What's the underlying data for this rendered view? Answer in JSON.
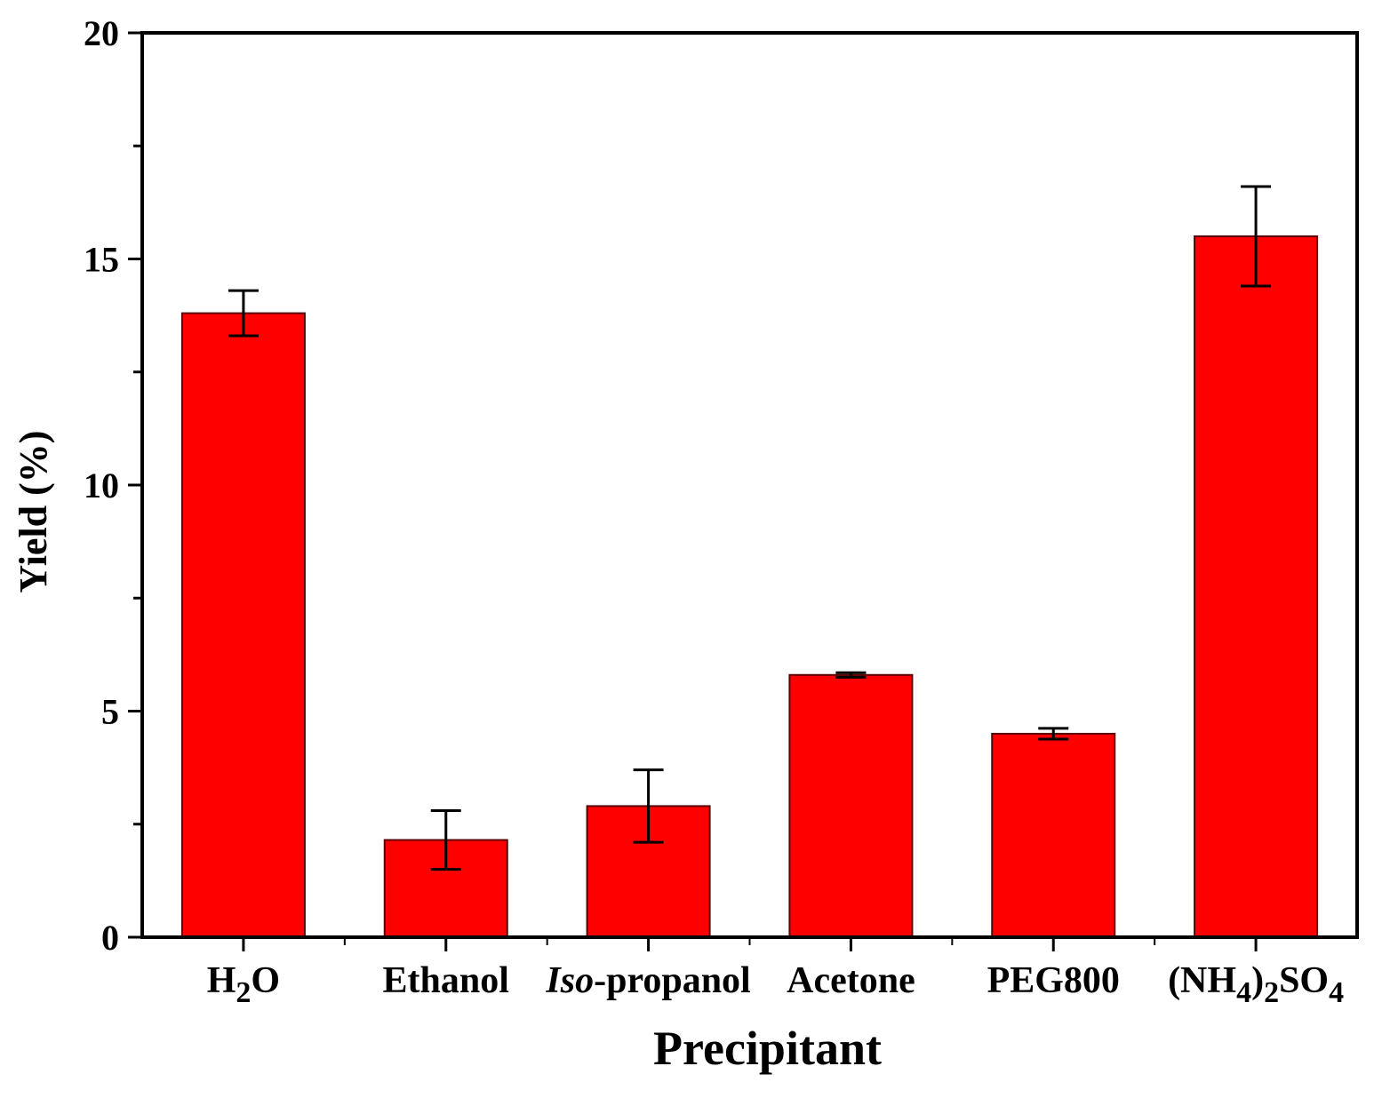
{
  "chart_data": {
    "type": "bar",
    "categories": [
      "H2O",
      "Ethanol",
      "Iso-propanol",
      "Acetone",
      "PEG800",
      "(NH4)2SO4"
    ],
    "category_labels": [
      [
        {
          "t": "H"
        },
        {
          "t": "2",
          "sub": true
        },
        {
          "t": "O"
        }
      ],
      [
        {
          "t": "Ethanol"
        }
      ],
      [
        {
          "t": "Iso",
          "italic": true
        },
        {
          "t": "-propanol"
        }
      ],
      [
        {
          "t": "Acetone"
        }
      ],
      [
        {
          "t": "PEG800"
        }
      ],
      [
        {
          "t": "(NH"
        },
        {
          "t": "4",
          "sub": true
        },
        {
          "t": ")"
        },
        {
          "t": "2",
          "sub": true
        },
        {
          "t": "SO"
        },
        {
          "t": "4",
          "sub": true
        }
      ]
    ],
    "values": [
      13.8,
      2.15,
      2.9,
      5.8,
      4.5,
      15.5
    ],
    "error": [
      0.5,
      0.65,
      0.8,
      0.05,
      0.12,
      1.1
    ],
    "xlabel": "Precipitant",
    "ylabel": "Yield (%)",
    "ylim": [
      0,
      20
    ],
    "yticks": [
      0,
      5,
      10,
      15,
      20
    ],
    "yminor_step": 2.5,
    "bar_color": "#ff0000",
    "bar_edge_color": "#5a0000",
    "grid": false,
    "legend": "none"
  }
}
